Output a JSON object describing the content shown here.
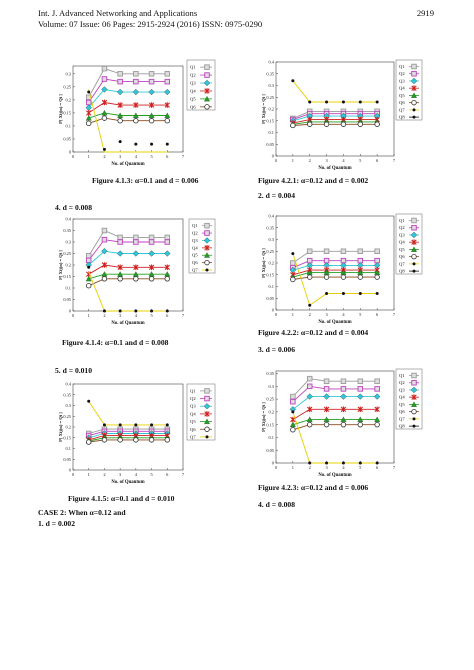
{
  "header": {
    "journal": "Int. J. Advanced Networking and Applications",
    "volume": "Volume: 07 Issue: 06 Pages: 2915-2924 (2016) ISSN: 0975-0290",
    "page_number": "2919"
  },
  "captions": {
    "fig413": "Figure 4.1.3:  α=0.1 and d = 0.006",
    "fig414": "Figure 4.1.4:  α=0.1 and  d = 0.008",
    "fig415": "Figure 4.1.5:  α=0.1 and  d = 0.010",
    "fig421": "Figure 4.2.1:  α=0.12 and d = 0.002",
    "fig422": "Figure 4.2.2:  α=0.12 and d = 0.004",
    "fig423": "Figure 4.2.3:  α=0.12 and d = 0.006"
  },
  "subheads": {
    "left_d008": "4.    d = 0.008",
    "left_d010": "5.    d = 0.010",
    "right_d004": "2.    d = 0.004",
    "right_d006": "3.    d = 0.006",
    "right_d008": "4.    d = 0.008",
    "case2": "CASE 2: When α=0.12 and",
    "case2_item": "1.    d = 0.002"
  },
  "colors": {
    "Q1": "#9a9a9a",
    "Q2": "#c040c0",
    "Q3": "#30c8d8",
    "Q4": "#d02020",
    "Q5": "#20a020",
    "Q6": "#8a4a20",
    "Q7": "#e8d000",
    "Q8": "#111111"
  },
  "chart_data": [
    {
      "id": "fig413",
      "type": "line",
      "xlabel": "No. of Quantum",
      "ylabel": "P[ Xij(n) = Qi ]",
      "x": [
        1,
        2,
        3,
        4,
        5,
        6
      ],
      "xticks": [
        0,
        1,
        2,
        3,
        4,
        5,
        6,
        7
      ],
      "yticks": [
        "0",
        "0.05",
        "0.1",
        "0.15",
        "0.2",
        "0.25",
        "0.3"
      ],
      "ylim": [
        0,
        0.33
      ],
      "xlim": [
        0,
        7
      ],
      "series": [
        {
          "name": "Q1",
          "values": [
            0.21,
            0.32,
            0.3,
            0.3,
            0.3,
            0.3
          ]
        },
        {
          "name": "Q2",
          "values": [
            0.19,
            0.28,
            0.27,
            0.27,
            0.27,
            0.27
          ]
        },
        {
          "name": "Q3",
          "values": [
            0.17,
            0.24,
            0.23,
            0.23,
            0.23,
            0.23
          ]
        },
        {
          "name": "Q4",
          "values": [
            0.15,
            0.19,
            0.18,
            0.18,
            0.18,
            0.18
          ]
        },
        {
          "name": "Q5",
          "values": [
            0.13,
            0.15,
            0.14,
            0.14,
            0.14,
            0.14
          ]
        },
        {
          "name": "Q6",
          "values": [
            0.11,
            0.13,
            0.12,
            0.12,
            0.12,
            0.12
          ]
        },
        {
          "name": "Q7",
          "values": [
            0.24,
            0.0,
            0.0,
            0.0,
            0.0,
            0.0
          ]
        },
        {
          "name": "Q8",
          "values": [
            0.23,
            0.01,
            0.04,
            0.03,
            0.03,
            0.03
          ]
        }
      ],
      "legend": [
        "Q1",
        "Q2",
        "Q3",
        "Q4",
        "Q5",
        "Q6"
      ]
    },
    {
      "id": "fig414",
      "type": "line",
      "xlabel": "No. of Quantum",
      "ylabel": "P[ Xij(n) = Qi ]",
      "x": [
        1,
        2,
        3,
        4,
        5,
        6
      ],
      "xticks": [
        0,
        1,
        2,
        3,
        4,
        5,
        6,
        7
      ],
      "yticks": [
        "0",
        "0.05",
        "0.1",
        "0.15",
        "0.2",
        "0.25",
        "0.3",
        "0.35",
        "0.4"
      ],
      "ylim": [
        0,
        0.4
      ],
      "xlim": [
        0,
        7
      ],
      "series": [
        {
          "name": "Q1",
          "values": [
            0.24,
            0.35,
            0.32,
            0.32,
            0.32,
            0.32
          ]
        },
        {
          "name": "Q2",
          "values": [
            0.22,
            0.31,
            0.3,
            0.3,
            0.3,
            0.3
          ]
        },
        {
          "name": "Q3",
          "values": [
            0.2,
            0.26,
            0.25,
            0.25,
            0.25,
            0.25
          ]
        },
        {
          "name": "Q4",
          "values": [
            0.16,
            0.2,
            0.19,
            0.19,
            0.19,
            0.19
          ]
        },
        {
          "name": "Q5",
          "values": [
            0.14,
            0.16,
            0.16,
            0.16,
            0.16,
            0.16
          ]
        },
        {
          "name": "Q6",
          "values": [
            0.11,
            0.14,
            0.14,
            0.14,
            0.14,
            0.14
          ]
        },
        {
          "name": "Q7",
          "values": [
            0.17,
            0.0,
            0.0,
            0.0,
            0.0,
            0.0
          ]
        },
        {
          "name": "Q8",
          "values": [
            0.19,
            0.0,
            0.0,
            0.0,
            0.0,
            0.0
          ]
        }
      ],
      "legend": [
        "Q1",
        "Q2",
        "Q3",
        "Q4",
        "Q5",
        "Q6",
        "Q7"
      ]
    },
    {
      "id": "fig415",
      "type": "line",
      "xlabel": "No. of Quantum",
      "ylabel": "P[ Xij(n) = Qi ]",
      "x": [
        1,
        2,
        3,
        4,
        5,
        6
      ],
      "xticks": [
        0,
        1,
        2,
        3,
        4,
        5,
        6,
        7
      ],
      "yticks": [
        "0",
        "0.05",
        "0.1",
        "0.15",
        "0.2",
        "0.25",
        "0.3",
        "0.35",
        "0.4"
      ],
      "ylim": [
        0,
        0.4
      ],
      "xlim": [
        0,
        7
      ],
      "series": [
        {
          "name": "Q1",
          "values": [
            0.17,
            0.19,
            0.19,
            0.19,
            0.19,
            0.19
          ]
        },
        {
          "name": "Q2",
          "values": [
            0.16,
            0.18,
            0.18,
            0.18,
            0.18,
            0.18
          ]
        },
        {
          "name": "Q3",
          "values": [
            0.15,
            0.17,
            0.17,
            0.17,
            0.17,
            0.17
          ]
        },
        {
          "name": "Q4",
          "values": [
            0.14,
            0.16,
            0.16,
            0.16,
            0.16,
            0.16
          ]
        },
        {
          "name": "Q5",
          "values": [
            0.135,
            0.15,
            0.15,
            0.15,
            0.15,
            0.15
          ]
        },
        {
          "name": "Q6",
          "values": [
            0.13,
            0.14,
            0.14,
            0.14,
            0.14,
            0.14
          ]
        },
        {
          "name": "Q7",
          "values": [
            0.32,
            0.21,
            0.21,
            0.21,
            0.21,
            0.21
          ]
        },
        {
          "name": "Q8",
          "values": [
            0.32,
            0.21,
            0.21,
            0.21,
            0.21,
            0.21
          ]
        }
      ],
      "legend": [
        "Q1",
        "Q2",
        "Q3",
        "Q4",
        "Q5",
        "Q6",
        "Q7"
      ]
    },
    {
      "id": "fig421",
      "type": "line",
      "xlabel": "No. of Quantum",
      "ylabel": "P[ Xij(n) = Qi ]",
      "x": [
        1,
        2,
        3,
        4,
        5,
        6
      ],
      "xticks": [
        0,
        1,
        2,
        3,
        4,
        5,
        6,
        7
      ],
      "yticks": [
        "0",
        "0.05",
        "0.1",
        "0.15",
        "0.2",
        "0.25",
        "0.3",
        "0.35",
        "0.4"
      ],
      "ylim": [
        0,
        0.4
      ],
      "xlim": [
        0,
        7
      ],
      "series": [
        {
          "name": "Q1",
          "values": [
            0.16,
            0.19,
            0.19,
            0.19,
            0.19,
            0.19
          ]
        },
        {
          "name": "Q2",
          "values": [
            0.155,
            0.18,
            0.18,
            0.18,
            0.18,
            0.18
          ]
        },
        {
          "name": "Q3",
          "values": [
            0.15,
            0.17,
            0.17,
            0.17,
            0.17,
            0.17
          ]
        },
        {
          "name": "Q4",
          "values": [
            0.14,
            0.155,
            0.155,
            0.155,
            0.155,
            0.155
          ]
        },
        {
          "name": "Q5",
          "values": [
            0.135,
            0.145,
            0.145,
            0.145,
            0.145,
            0.145
          ]
        },
        {
          "name": "Q6",
          "values": [
            0.13,
            0.135,
            0.135,
            0.135,
            0.135,
            0.135
          ]
        },
        {
          "name": "Q7",
          "values": [
            0.32,
            0.23,
            0.23,
            0.23,
            0.23,
            0.23
          ]
        },
        {
          "name": "Q8",
          "values": [
            0.32,
            0.23,
            0.23,
            0.23,
            0.23,
            0.23
          ]
        }
      ],
      "legend": [
        "Q1",
        "Q2",
        "Q3",
        "Q4",
        "Q5",
        "Q6",
        "Q7",
        "Q8"
      ]
    },
    {
      "id": "fig422",
      "type": "line",
      "xlabel": "No. of Quantum",
      "ylabel": "P[ Xij(n) = Qi ]",
      "x": [
        1,
        2,
        3,
        4,
        5,
        6
      ],
      "xticks": [
        0,
        1,
        2,
        3,
        4,
        5,
        6,
        7
      ],
      "yticks": [
        "0",
        "0.05",
        "0.1",
        "0.15",
        "0.2",
        "0.25",
        "0.3",
        "0.35",
        "0.4"
      ],
      "ylim": [
        0,
        0.4
      ],
      "xlim": [
        0,
        7
      ],
      "series": [
        {
          "name": "Q1",
          "values": [
            0.2,
            0.25,
            0.25,
            0.25,
            0.25,
            0.25
          ]
        },
        {
          "name": "Q2",
          "values": [
            0.18,
            0.21,
            0.21,
            0.21,
            0.21,
            0.21
          ]
        },
        {
          "name": "Q3",
          "values": [
            0.17,
            0.19,
            0.19,
            0.19,
            0.19,
            0.19
          ]
        },
        {
          "name": "Q4",
          "values": [
            0.15,
            0.17,
            0.17,
            0.17,
            0.17,
            0.17
          ]
        },
        {
          "name": "Q5",
          "values": [
            0.14,
            0.16,
            0.16,
            0.16,
            0.16,
            0.16
          ]
        },
        {
          "name": "Q6",
          "values": [
            0.13,
            0.14,
            0.14,
            0.14,
            0.14,
            0.14
          ]
        },
        {
          "name": "Q7",
          "values": [
            0.24,
            0.02,
            0.07,
            0.07,
            0.07,
            0.07
          ]
        },
        {
          "name": "Q8",
          "values": [
            0.24,
            0.02,
            0.07,
            0.07,
            0.07,
            0.07
          ]
        }
      ],
      "legend": [
        "Q1",
        "Q2",
        "Q3",
        "Q4",
        "Q5",
        "Q6",
        "Q7",
        "Q8"
      ]
    },
    {
      "id": "fig423",
      "type": "line",
      "xlabel": "No. of Quantum",
      "ylabel": "P[ Xij(n) = Qi ]",
      "x": [
        1,
        2,
        3,
        4,
        5,
        6
      ],
      "xticks": [
        0,
        1,
        2,
        3,
        4,
        5,
        6,
        7
      ],
      "yticks": [
        "0",
        "0.05",
        "0.1",
        "0.15",
        "0.2",
        "0.25",
        "0.3",
        "0.35"
      ],
      "ylim": [
        0,
        0.36
      ],
      "xlim": [
        0,
        7
      ],
      "series": [
        {
          "name": "Q1",
          "values": [
            0.26,
            0.33,
            0.32,
            0.32,
            0.32,
            0.32
          ]
        },
        {
          "name": "Q2",
          "values": [
            0.24,
            0.3,
            0.29,
            0.29,
            0.29,
            0.29
          ]
        },
        {
          "name": "Q3",
          "values": [
            0.21,
            0.26,
            0.26,
            0.26,
            0.26,
            0.26
          ]
        },
        {
          "name": "Q4",
          "values": [
            0.17,
            0.21,
            0.21,
            0.21,
            0.21,
            0.21
          ]
        },
        {
          "name": "Q5",
          "values": [
            0.15,
            0.17,
            0.17,
            0.17,
            0.17,
            0.17
          ]
        },
        {
          "name": "Q6",
          "values": [
            0.13,
            0.15,
            0.15,
            0.15,
            0.15,
            0.15
          ]
        },
        {
          "name": "Q7",
          "values": [
            0.2,
            0.0,
            0.0,
            0.0,
            0.0,
            0.0
          ]
        },
        {
          "name": "Q8",
          "values": [
            0.2,
            0.0,
            0.0,
            0.0,
            0.0,
            0.0
          ]
        }
      ],
      "legend": [
        "Q1",
        "Q2",
        "Q3",
        "Q4",
        "Q5",
        "Q6",
        "Q7",
        "Q8"
      ]
    }
  ]
}
